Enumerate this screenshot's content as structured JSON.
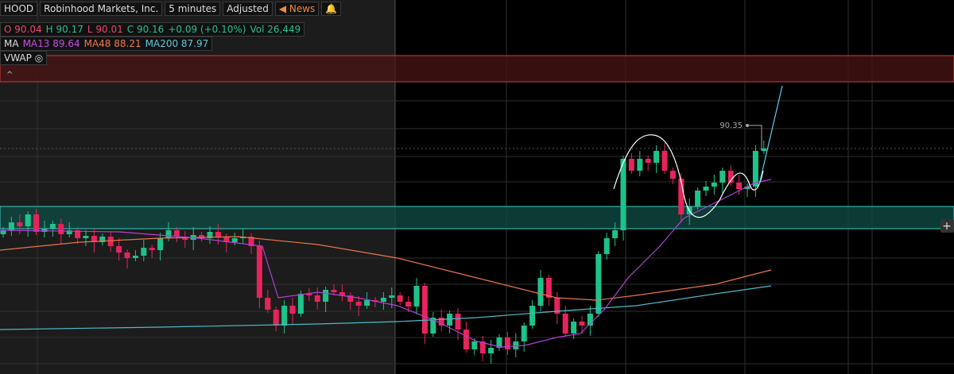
{
  "header": {
    "symbol": "HOOD",
    "company": "Robinhood Markets, Inc.",
    "interval": "5 minutes",
    "adjustment": "Adjusted",
    "news": "News"
  },
  "quote": {
    "open_label": "O",
    "open": 90.04,
    "high_label": "H",
    "high": 90.17,
    "low_label": "L",
    "low": 90.01,
    "close_label": "C",
    "close": 90.16,
    "change": "+0.09 (+0.10%)",
    "volume_label": "Vol",
    "volume": "26,449"
  },
  "studies": {
    "ma_label": "MA",
    "ma13_label": "MA13",
    "ma13": 89.64,
    "ma48_label": "MA48",
    "ma48": 88.21,
    "ma200_label": "MA200",
    "ma200": 87.97,
    "vwap_label": "VWAP"
  },
  "annotation": {
    "price": 90.35
  }
}
